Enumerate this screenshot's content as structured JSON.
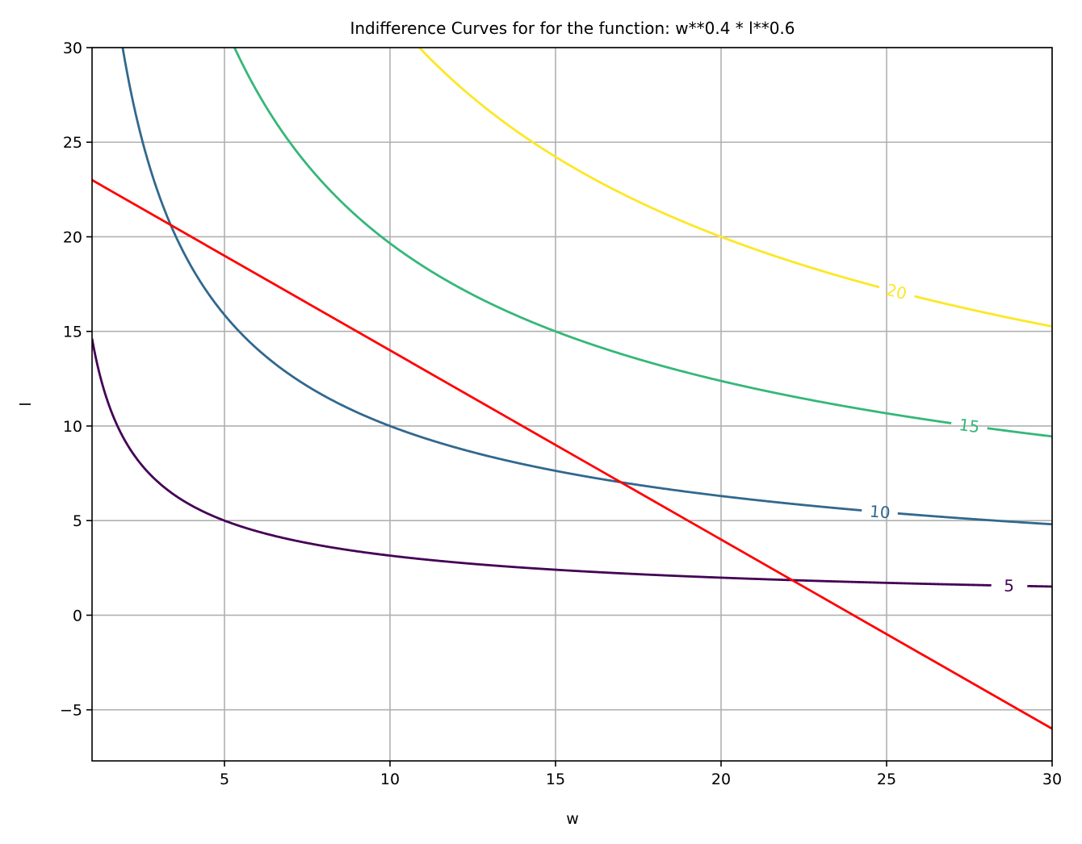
{
  "chart_data": {
    "type": "line",
    "title": "Indifference Curves for for the function: w**0.4 * l**0.6",
    "xlabel": "w",
    "ylabel": "l",
    "xlim": [
      1,
      30
    ],
    "ylim": [
      -7.7,
      30
    ],
    "grid": true,
    "x_ticks": [
      5,
      10,
      15,
      20,
      25,
      30
    ],
    "x_tick_labels": [
      "5",
      "10",
      "15",
      "20",
      "25",
      "30"
    ],
    "y_ticks": [
      -5,
      0,
      5,
      10,
      15,
      20,
      25,
      30
    ],
    "y_tick_labels": [
      "−5",
      "0",
      "5",
      "10",
      "15",
      "20",
      "25",
      "30"
    ],
    "utility_exponents": {
      "w": 0.4,
      "l": 0.6
    },
    "contours": [
      {
        "level": 5,
        "label": "5",
        "color": "#440154",
        "label_at_w": 28.7
      },
      {
        "level": 10,
        "label": "10",
        "color": "#31688e",
        "label_at_w": 24.8
      },
      {
        "level": 15,
        "label": "15",
        "color": "#35b779",
        "label_at_w": 27.5
      },
      {
        "level": 20,
        "label": "20",
        "color": "#fde725",
        "label_at_w": 25.3
      }
    ],
    "budget_line": {
      "color": "#ff0000",
      "points": [
        [
          1,
          23
        ],
        [
          30,
          -6
        ]
      ]
    }
  }
}
